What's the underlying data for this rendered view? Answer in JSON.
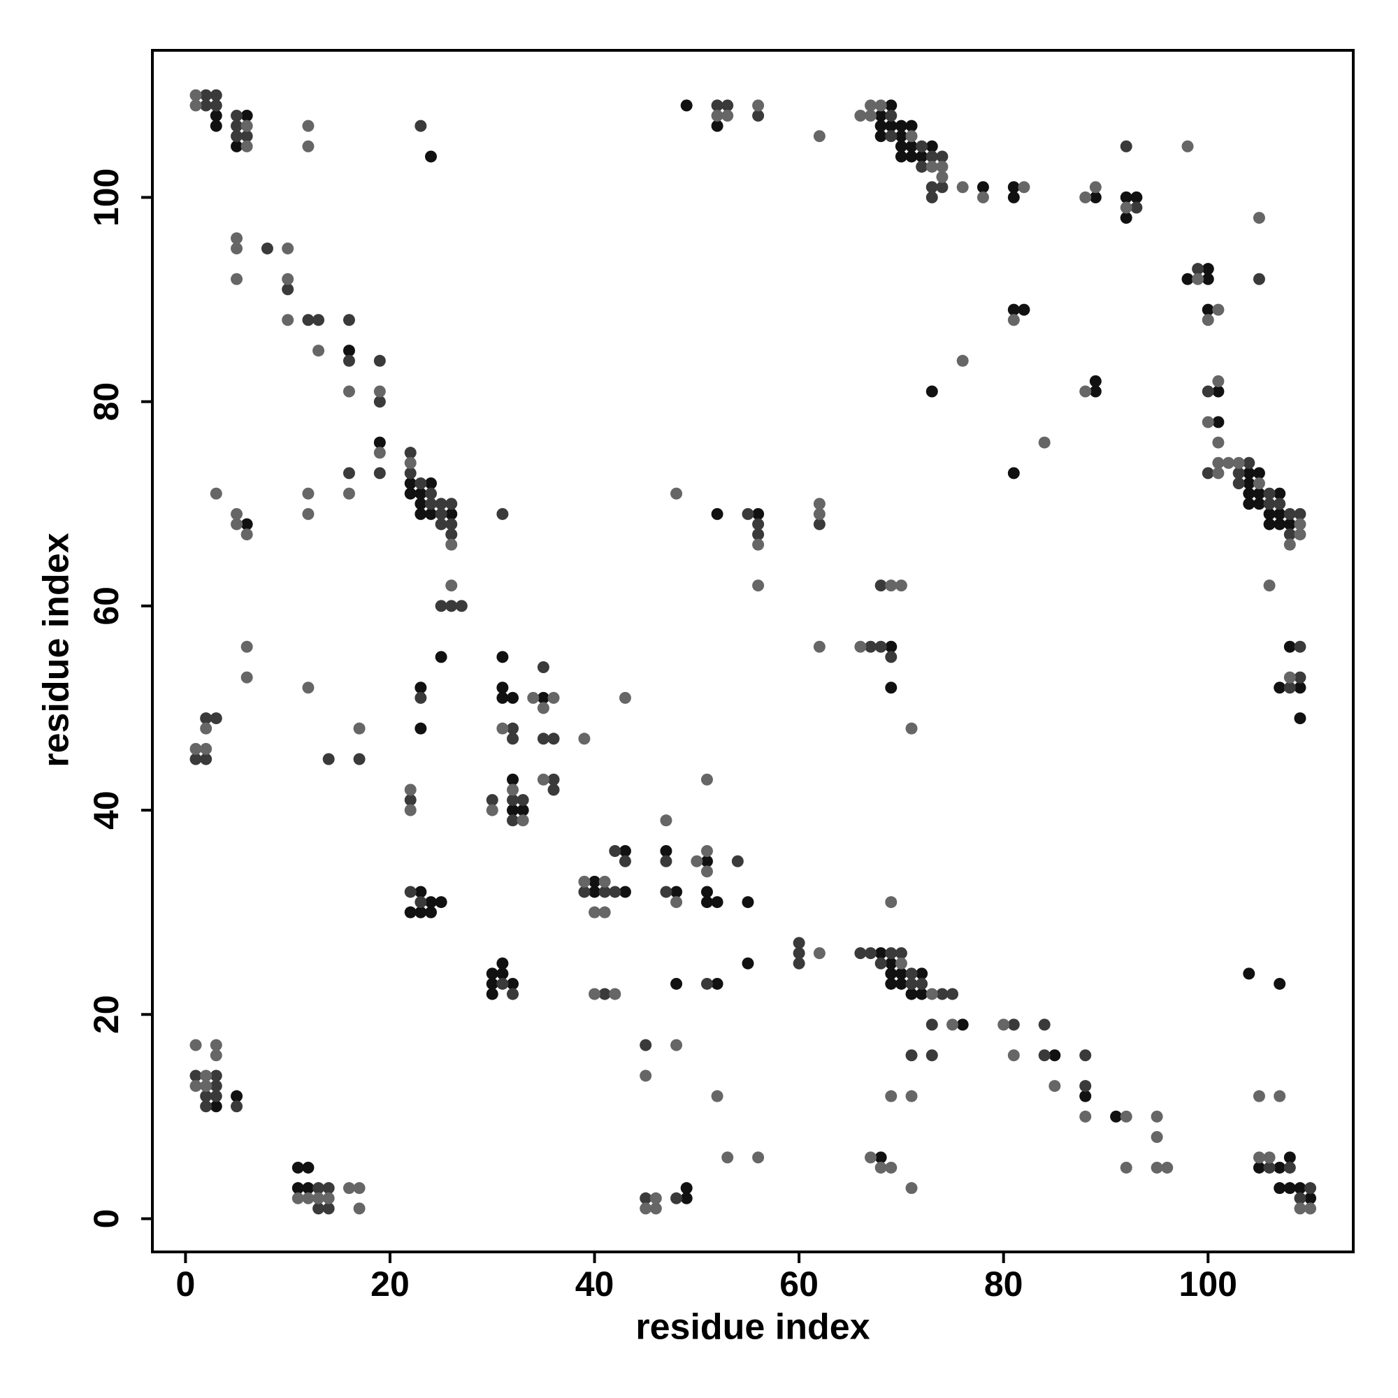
{
  "chart_data": {
    "type": "scatter",
    "xlabel": "residue index",
    "ylabel": "residue index",
    "xlim": [
      -3.24,
      114.2
    ],
    "ylim": [
      -3.25,
      114.4
    ],
    "xticks": [
      0,
      20,
      40,
      60,
      80,
      100
    ],
    "yticks": [
      0,
      20,
      40,
      60,
      80,
      100
    ],
    "series": [
      {
        "color": "#111111",
        "x": [
          3,
          3,
          5,
          6,
          24,
          16,
          19,
          6,
          22,
          22,
          23,
          23,
          23,
          24,
          24,
          26,
          25,
          23,
          23,
          31,
          31,
          31,
          32,
          35,
          32,
          32,
          33,
          22,
          23,
          23,
          24,
          24,
          25,
          30,
          30,
          30,
          31,
          31,
          32,
          40,
          40,
          43,
          43,
          47,
          48,
          48,
          51,
          51,
          51,
          52,
          55,
          55,
          52,
          49,
          49,
          3,
          5,
          11,
          11,
          12,
          12,
          68,
          69,
          69,
          69,
          70,
          70,
          71,
          72,
          72,
          76,
          85,
          88,
          91,
          68,
          104,
          107,
          105,
          107,
          107,
          108,
          108,
          109,
          110,
          56,
          52,
          69,
          69,
          49,
          52,
          68,
          68,
          68,
          69,
          69,
          70,
          70,
          70,
          70,
          71,
          71,
          71,
          72,
          73,
          78,
          81,
          81,
          89,
          92,
          92,
          93,
          81,
          82,
          73,
          89,
          89,
          81,
          98,
          100,
          100,
          100,
          101,
          101,
          104,
          104,
          104,
          104,
          105,
          105,
          105,
          106,
          106,
          107,
          107,
          107,
          108,
          108,
          107,
          109,
          109
        ],
        "values": [
          108,
          107,
          105,
          108,
          104,
          85,
          76,
          68,
          72,
          71,
          71,
          70,
          69,
          72,
          69,
          69,
          55,
          52,
          48,
          55,
          52,
          51,
          51,
          51,
          43,
          40,
          40,
          30,
          32,
          30,
          31,
          30,
          31,
          24,
          23,
          22,
          25,
          24,
          23,
          33,
          32,
          36,
          32,
          36,
          32,
          23,
          35,
          32,
          31,
          31,
          31,
          25,
          23,
          3,
          2,
          11,
          12,
          5,
          3,
          5,
          3,
          26,
          25,
          24,
          23,
          24,
          23,
          22,
          24,
          22,
          19,
          16,
          12,
          10,
          6,
          24,
          23,
          5,
          5,
          3,
          6,
          3,
          3,
          2,
          69,
          69,
          56,
          52,
          109,
          107,
          108,
          107,
          106,
          109,
          107,
          107,
          106,
          105,
          104,
          107,
          105,
          104,
          104,
          105,
          101,
          101,
          100,
          100,
          100,
          98,
          100,
          89,
          89,
          81,
          82,
          81,
          73,
          92,
          93,
          92,
          89,
          81,
          78,
          73,
          72,
          71,
          70,
          73,
          71,
          70,
          69,
          68,
          71,
          69,
          68,
          68,
          56,
          52,
          52,
          49
        ]
      },
      {
        "color": "#3a3a3a",
        "x": [
          2,
          2,
          3,
          3,
          5,
          5,
          5,
          6,
          23,
          8,
          10,
          12,
          13,
          16,
          16,
          19,
          19,
          19,
          16,
          22,
          22,
          23,
          24,
          24,
          25,
          25,
          25,
          26,
          26,
          26,
          31,
          25,
          26,
          27,
          1,
          2,
          2,
          3,
          14,
          17,
          23,
          32,
          32,
          35,
          35,
          36,
          36,
          36,
          22,
          30,
          32,
          32,
          33,
          22,
          23,
          31,
          32,
          39,
          41,
          42,
          42,
          43,
          41,
          47,
          47,
          54,
          51,
          45,
          45,
          48,
          1,
          2,
          2,
          3,
          3,
          3,
          5,
          13,
          13,
          14,
          14,
          60,
          60,
          60,
          66,
          67,
          68,
          69,
          70,
          71,
          71,
          72,
          74,
          75,
          73,
          73,
          81,
          84,
          84,
          88,
          88,
          71,
          106,
          108,
          109,
          110,
          55,
          56,
          56,
          62,
          67,
          68,
          68,
          69,
          52,
          53,
          56,
          69,
          69,
          72,
          72,
          73,
          73,
          73,
          74,
          74,
          92,
          93,
          105,
          99,
          100,
          100,
          103,
          103,
          104,
          106,
          106,
          107,
          108,
          108,
          109,
          109,
          108,
          109
        ],
        "values": [
          110,
          109,
          110,
          109,
          108,
          107,
          106,
          106,
          107,
          95,
          91,
          88,
          88,
          88,
          84,
          84,
          80,
          73,
          73,
          75,
          73,
          72,
          71,
          70,
          70,
          69,
          68,
          70,
          68,
          67,
          69,
          60,
          60,
          60,
          45,
          49,
          45,
          49,
          45,
          45,
          51,
          48,
          47,
          54,
          47,
          47,
          43,
          42,
          41,
          41,
          41,
          39,
          41,
          32,
          31,
          23,
          22,
          32,
          32,
          36,
          32,
          35,
          22,
          35,
          32,
          35,
          23,
          17,
          2,
          2,
          14,
          12,
          11,
          14,
          13,
          12,
          11,
          3,
          1,
          3,
          1,
          27,
          26,
          25,
          26,
          26,
          25,
          26,
          26,
          24,
          23,
          23,
          22,
          22,
          19,
          16,
          19,
          19,
          16,
          16,
          13,
          16,
          5,
          5,
          2,
          3,
          69,
          68,
          67,
          68,
          56,
          62,
          56,
          55,
          109,
          109,
          108,
          108,
          106,
          105,
          103,
          104,
          101,
          100,
          104,
          101,
          105,
          99,
          92,
          93,
          81,
          73,
          73,
          72,
          74,
          71,
          70,
          70,
          69,
          67,
          69,
          56,
          52,
          53
        ]
      },
      {
        "color": "#666666",
        "x": [
          1,
          1,
          6,
          6,
          12,
          12,
          5,
          5,
          5,
          10,
          10,
          10,
          13,
          16,
          19,
          19,
          16,
          12,
          12,
          3,
          5,
          5,
          6,
          22,
          26,
          26,
          6,
          6,
          1,
          2,
          2,
          12,
          17,
          31,
          34,
          35,
          36,
          35,
          39,
          43,
          22,
          22,
          30,
          32,
          33,
          39,
          40,
          41,
          41,
          40,
          42,
          47,
          48,
          50,
          51,
          51,
          51,
          45,
          48,
          45,
          46,
          46,
          52,
          53,
          56,
          1,
          1,
          2,
          2,
          3,
          3,
          11,
          12,
          13,
          14,
          16,
          17,
          17,
          62,
          70,
          73,
          75,
          69,
          80,
          81,
          85,
          88,
          92,
          92,
          95,
          95,
          95,
          96,
          69,
          71,
          67,
          68,
          69,
          71,
          105,
          107,
          105,
          106,
          109,
          110,
          56,
          56,
          48,
          62,
          62,
          62,
          66,
          69,
          70,
          71,
          52,
          53,
          56,
          62,
          66,
          67,
          67,
          68,
          71,
          73,
          74,
          74,
          76,
          78,
          82,
          88,
          89,
          92,
          98,
          81,
          76,
          88,
          84,
          105,
          99,
          100,
          101,
          101,
          100,
          101,
          101,
          101,
          102,
          103,
          105,
          108,
          109,
          109,
          106,
          108
        ],
        "values": [
          110,
          109,
          107,
          105,
          107,
          105,
          96,
          95,
          92,
          95,
          92,
          88,
          85,
          81,
          81,
          75,
          71,
          71,
          69,
          71,
          69,
          68,
          67,
          74,
          66,
          62,
          56,
          53,
          46,
          48,
          46,
          52,
          48,
          48,
          51,
          50,
          51,
          43,
          47,
          51,
          42,
          40,
          40,
          42,
          39,
          33,
          30,
          33,
          30,
          22,
          22,
          39,
          31,
          35,
          36,
          34,
          43,
          14,
          17,
          1,
          2,
          1,
          12,
          6,
          6,
          17,
          13,
          14,
          13,
          17,
          16,
          2,
          2,
          2,
          2,
          3,
          3,
          1,
          26,
          25,
          22,
          19,
          31,
          19,
          16,
          13,
          10,
          10,
          5,
          10,
          8,
          5,
          5,
          12,
          12,
          6,
          5,
          5,
          3,
          12,
          12,
          6,
          6,
          1,
          1,
          66,
          62,
          71,
          70,
          69,
          56,
          56,
          62,
          62,
          48,
          108,
          108,
          109,
          106,
          108,
          109,
          108,
          109,
          106,
          103,
          103,
          102,
          101,
          100,
          101,
          100,
          101,
          99,
          105,
          88,
          84,
          81,
          76,
          98,
          92,
          88,
          89,
          82,
          78,
          76,
          74,
          73,
          74,
          74,
          72,
          66,
          68,
          67,
          62,
          53
        ]
      }
    ]
  }
}
